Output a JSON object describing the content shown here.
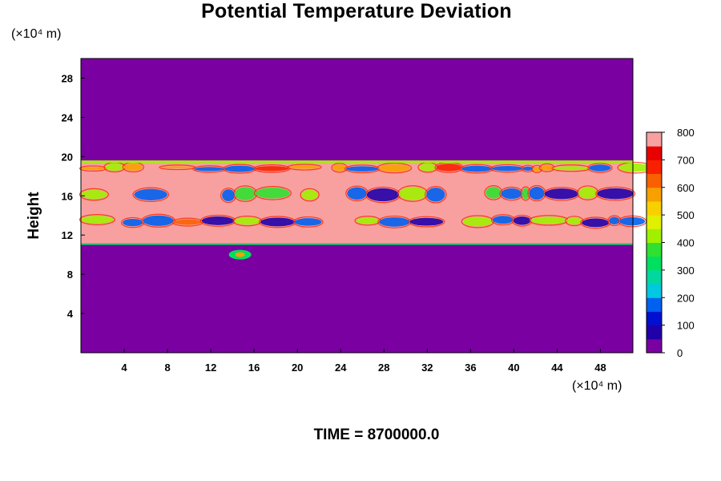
{
  "chart_data": {
    "type": "heatmap",
    "title": "Potential Temperature Deviation",
    "ylabel": "Height",
    "xlabel": "",
    "x_units_label": "(×10⁴ m)",
    "y_units_label": "(×10⁴ m)",
    "footer": "TIME = 8700000.0",
    "xlim": [
      0,
      51
    ],
    "ylim": [
      0,
      30
    ],
    "x_ticks": [
      "4",
      "8",
      "12",
      "16",
      "20",
      "24",
      "28",
      "32",
      "36",
      "40",
      "44",
      "48"
    ],
    "x_tick_values": [
      4,
      8,
      12,
      16,
      20,
      24,
      28,
      32,
      36,
      40,
      44,
      48
    ],
    "y_ticks": [
      "4",
      "8",
      "12",
      "16",
      "20",
      "24",
      "28"
    ],
    "y_tick_values": [
      4,
      8,
      12,
      16,
      20,
      24,
      28
    ],
    "colorbar": {
      "min": 0,
      "max": 800,
      "tick_labels": [
        "0",
        "100",
        "200",
        "300",
        "400",
        "500",
        "600",
        "700",
        "800"
      ],
      "tick_values": [
        0,
        100,
        200,
        300,
        400,
        500,
        600,
        700,
        800
      ],
      "colors": [
        "#7a00a2",
        "#2000a8",
        "#0010d0",
        "#0060f0",
        "#00c8e0",
        "#00d8a0",
        "#00e060",
        "#30e030",
        "#a0f000",
        "#e0f000",
        "#f8d000",
        "#f8a000",
        "#f86000",
        "#f82000",
        "#e80000",
        "#f8a0a0"
      ]
    },
    "background_value": 0,
    "bands": [
      {
        "name": "upper-layer",
        "y_range": [
          19.6,
          11.0
        ],
        "value": 800
      },
      {
        "name": "lower-blob",
        "x": 15,
        "y": 10,
        "value": 300
      }
    ]
  }
}
